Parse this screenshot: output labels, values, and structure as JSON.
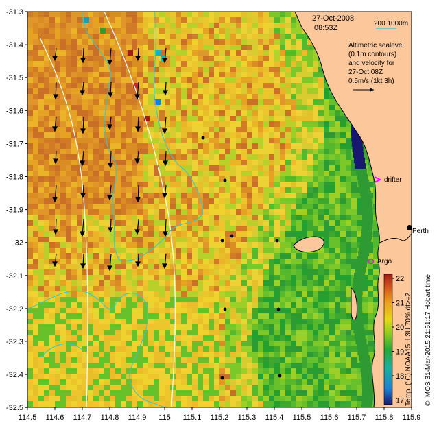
{
  "map": {
    "date": "27-Oct-2008",
    "time": "08:53Z",
    "depth_scale": "200  1000m",
    "info_lines": [
      "Altimetric sealevel",
      "(0.1m contours)",
      "and velocity for",
      "27-Oct 08Z",
      "0.5m/s (1kt 3h)"
    ],
    "drifter_label": "drifter",
    "city_label": "Perth",
    "argo_label": "Argo",
    "colorbar_label": "Temp. (°C) NOAA15_L3U 70% dt>=2",
    "colorbar_ticks": [
      "22",
      "21",
      "20",
      "19",
      "18",
      "17"
    ],
    "credit": "© IMOS 31-Mar-2015 21:51:17 Hobart time",
    "x_ticks": [
      "114.5",
      "114.6",
      "114.7",
      "114.8",
      "114.9",
      "115",
      "115.1",
      "115.2",
      "115.3",
      "115.4",
      "115.5",
      "115.6",
      "115.7",
      "115.8",
      "115.9"
    ],
    "y_ticks": [
      "-31.3",
      "-31.4",
      "-31.5",
      "-31.6",
      "-31.7",
      "-31.8",
      "-31.9",
      "-32",
      "-32.1",
      "-32.2",
      "-32.3",
      "-32.4",
      "-32.5"
    ],
    "colors": {
      "land": "#fcc79b",
      "contour": "#37c8c8",
      "depth_line": "#ffffff",
      "marker": "#ff00ff"
    }
  }
}
